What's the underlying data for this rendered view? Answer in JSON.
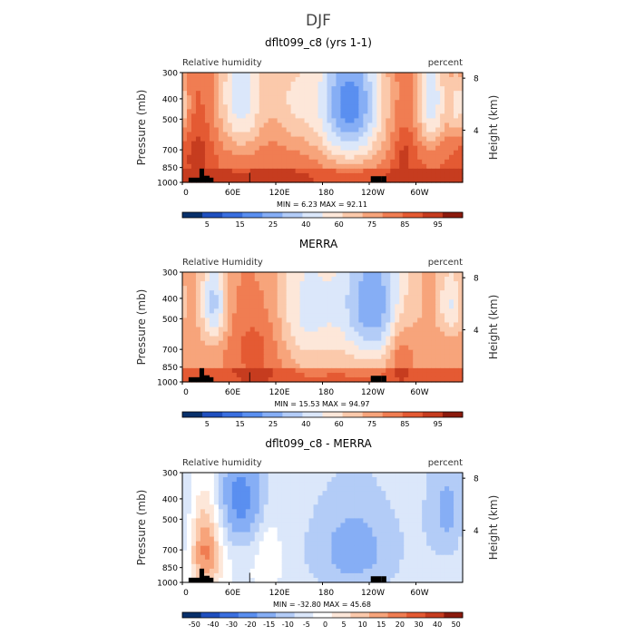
{
  "figure": {
    "title": "DJF"
  },
  "chart_data": [
    {
      "type": "heatmap",
      "title": "dflt099_c8 (yrs 1-1)",
      "left_label": "Relative humidity",
      "right_label": "percent",
      "ylabel": "Pressure (mb)",
      "ylabel_right": "Height (km)",
      "y_ticks": [
        "300",
        "400",
        "500",
        "700",
        "850",
        "1000"
      ],
      "y_ticks_right": [
        "8",
        "4"
      ],
      "x_ticks": [
        "0",
        "60E",
        "120E",
        "180",
        "120W",
        "60W"
      ],
      "stats": "MIN =    6.23   MAX =   92.11",
      "colorbar_labels": [
        "5",
        "15",
        "25",
        "40",
        "60",
        "75",
        "85",
        "95"
      ],
      "field": {
        "base": 80,
        "blobs": [
          {
            "lon": 75,
            "p": 380,
            "r": [
              22,
              220
            ],
            "a": -35
          },
          {
            "lon": 140,
            "p": 400,
            "r": [
              22,
              200
            ],
            "a": -20
          },
          {
            "lon": 215,
            "p": 420,
            "r": [
              32,
              260
            ],
            "a": -55
          },
          {
            "lon": 320,
            "p": 400,
            "r": [
              14,
              180
            ],
            "a": -35
          },
          {
            "lon": 355,
            "p": 430,
            "r": [
              10,
              120
            ],
            "a": -25
          },
          {
            "lon": 20,
            "p": 750,
            "r": [
              12,
              180
            ],
            "a": 10
          },
          {
            "lon": 285,
            "p": 750,
            "r": [
              10,
              160
            ],
            "a": 10
          }
        ],
        "pbl": 8,
        "min": 6.23,
        "max": 92.11
      }
    },
    {
      "type": "heatmap",
      "title": "MERRA",
      "left_label": "Relative Humidity",
      "right_label": "percent",
      "ylabel": "Pressure (mb)",
      "ylabel_right": "Height (km)",
      "y_ticks": [
        "300",
        "400",
        "500",
        "700",
        "850",
        "1000"
      ],
      "y_ticks_right": [
        "8",
        "4"
      ],
      "x_ticks": [
        "0",
        "60E",
        "120E",
        "180",
        "120W",
        "60W"
      ],
      "stats": "MIN =   15.53   MAX =   94.97",
      "colorbar_labels": [
        "5",
        "15",
        "25",
        "40",
        "60",
        "75",
        "85",
        "95"
      ],
      "field": {
        "base": 70,
        "blobs": [
          {
            "lon": 40,
            "p": 420,
            "r": [
              12,
              150
            ],
            "a": -30
          },
          {
            "lon": 160,
            "p": 440,
            "r": [
              28,
              260
            ],
            "a": -22
          },
          {
            "lon": 245,
            "p": 420,
            "r": [
              32,
              250
            ],
            "a": -40
          },
          {
            "lon": 345,
            "p": 420,
            "r": [
              12,
              120
            ],
            "a": -20
          },
          {
            "lon": 95,
            "p": 700,
            "r": [
              25,
              220
            ],
            "a": 12
          },
          {
            "lon": 280,
            "p": 700,
            "r": [
              12,
              200
            ],
            "a": 15
          }
        ],
        "pbl": 12,
        "min": 15.53,
        "max": 94.97
      }
    },
    {
      "type": "heatmap",
      "title": "dflt099_c8 - MERRA",
      "left_label": "Relative humidity",
      "right_label": "percent",
      "ylabel": "Pressure (mb)",
      "ylabel_right": "Height (km)",
      "y_ticks": [
        "300",
        "400",
        "500",
        "700",
        "850",
        "1000"
      ],
      "y_ticks_right": [
        "8",
        "4"
      ],
      "x_ticks": [
        "0",
        "60E",
        "120E",
        "180",
        "120W",
        "60W"
      ],
      "stats": "MIN =  -32.80   MAX =   45.68",
      "colorbar_labels": [
        "-50",
        "-40",
        "-30",
        "-20",
        "-15",
        "-10",
        "-5",
        "0",
        "5",
        "10",
        "15",
        "20",
        "30",
        "40",
        "50"
      ],
      "field": {
        "base": -4,
        "blobs": [
          {
            "lon": 30,
            "p": 700,
            "r": [
              14,
              250
            ],
            "a": 30
          },
          {
            "lon": 75,
            "p": 400,
            "r": [
              25,
              180
            ],
            "a": -22
          },
          {
            "lon": 220,
            "p": 700,
            "r": [
              45,
              300
            ],
            "a": -16
          },
          {
            "lon": 340,
            "p": 450,
            "r": [
              20,
              220
            ],
            "a": -14
          },
          {
            "lon": 110,
            "p": 700,
            "r": [
              12,
              220
            ],
            "a": 8
          }
        ],
        "pbl": 0,
        "min": -32.8,
        "max": 45.68
      }
    }
  ]
}
